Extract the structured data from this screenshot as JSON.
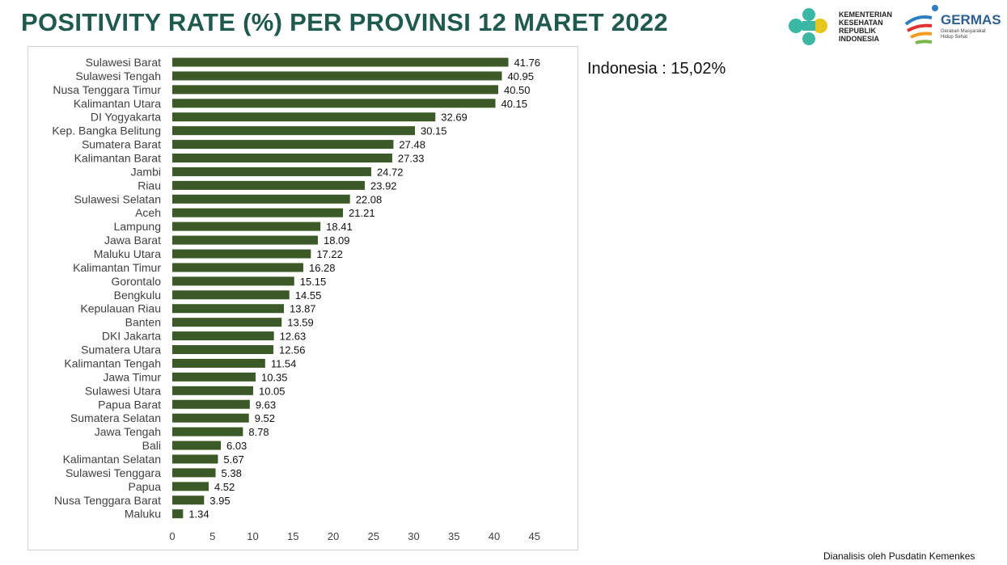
{
  "header": {
    "title": "POSITIVITY RATE (%) PER PROVINSI 12 MARET 2022",
    "kemenkes_lines": [
      "KEMENTERIAN",
      "KESEHATAN",
      "REPUBLIK",
      "INDONESIA"
    ],
    "germas_title": "GERMAS",
    "germas_sub": [
      "Gerakan Masyarakat",
      "Hidup Sehat"
    ]
  },
  "note": "Indonesia : 15,02%",
  "footer": "Dianalisis oleh Pusdatin Kemenkes",
  "colors": {
    "bar": "#3b5a27",
    "title": "#1f5a4f",
    "kemenkes_teal": "#3ab7a5",
    "kemenkes_yellow": "#e8c51c"
  },
  "chart_data": {
    "type": "bar",
    "orientation": "horizontal",
    "categories": [
      "Sulawesi Barat",
      "Sulawesi Tengah",
      "Nusa Tenggara Timur",
      "Kalimantan Utara",
      "DI Yogyakarta",
      "Kep. Bangka Belitung",
      "Sumatera Barat",
      "Kalimantan Barat",
      "Jambi",
      "Riau",
      "Sulawesi Selatan",
      "Aceh",
      "Lampung",
      "Jawa Barat",
      "Maluku Utara",
      "Kalimantan Timur",
      "Gorontalo",
      "Bengkulu",
      "Kepulauan Riau",
      "Banten",
      "DKI Jakarta",
      "Sumatera Utara",
      "Kalimantan Tengah",
      "Jawa Timur",
      "Sulawesi Utara",
      "Papua Barat",
      "Sumatera Selatan",
      "Jawa Tengah",
      "Bali",
      "Kalimantan Selatan",
      "Sulawesi Tenggara",
      "Papua",
      "Nusa Tenggara Barat",
      "Maluku"
    ],
    "values": [
      41.76,
      40.95,
      40.5,
      40.15,
      32.69,
      30.15,
      27.48,
      27.33,
      24.72,
      23.92,
      22.08,
      21.21,
      18.41,
      18.09,
      17.22,
      16.28,
      15.15,
      14.55,
      13.87,
      13.59,
      12.63,
      12.56,
      11.54,
      10.35,
      10.05,
      9.63,
      9.52,
      8.78,
      6.03,
      5.67,
      5.38,
      4.52,
      3.95,
      1.34
    ],
    "value_labels": [
      "41.76",
      "40.95",
      "40.50",
      "40.15",
      "32.69",
      "30.15",
      "27.48",
      "27.33",
      "24.72",
      "23.92",
      "22.08",
      "21.21",
      "18.41",
      "18.09",
      "17.22",
      "16.28",
      "15.15",
      "14.55",
      "13.87",
      "13.59",
      "12.63",
      "12.56",
      "11.54",
      "10.35",
      "10.05",
      "9.63",
      "9.52",
      "8.78",
      "6.03",
      "5.67",
      "5.38",
      "4.52",
      "3.95",
      "1.34"
    ],
    "xlim": [
      0,
      45
    ],
    "xticks": [
      0,
      5,
      10,
      15,
      20,
      25,
      30,
      35,
      40,
      45
    ],
    "grid": false,
    "legend": "none"
  }
}
